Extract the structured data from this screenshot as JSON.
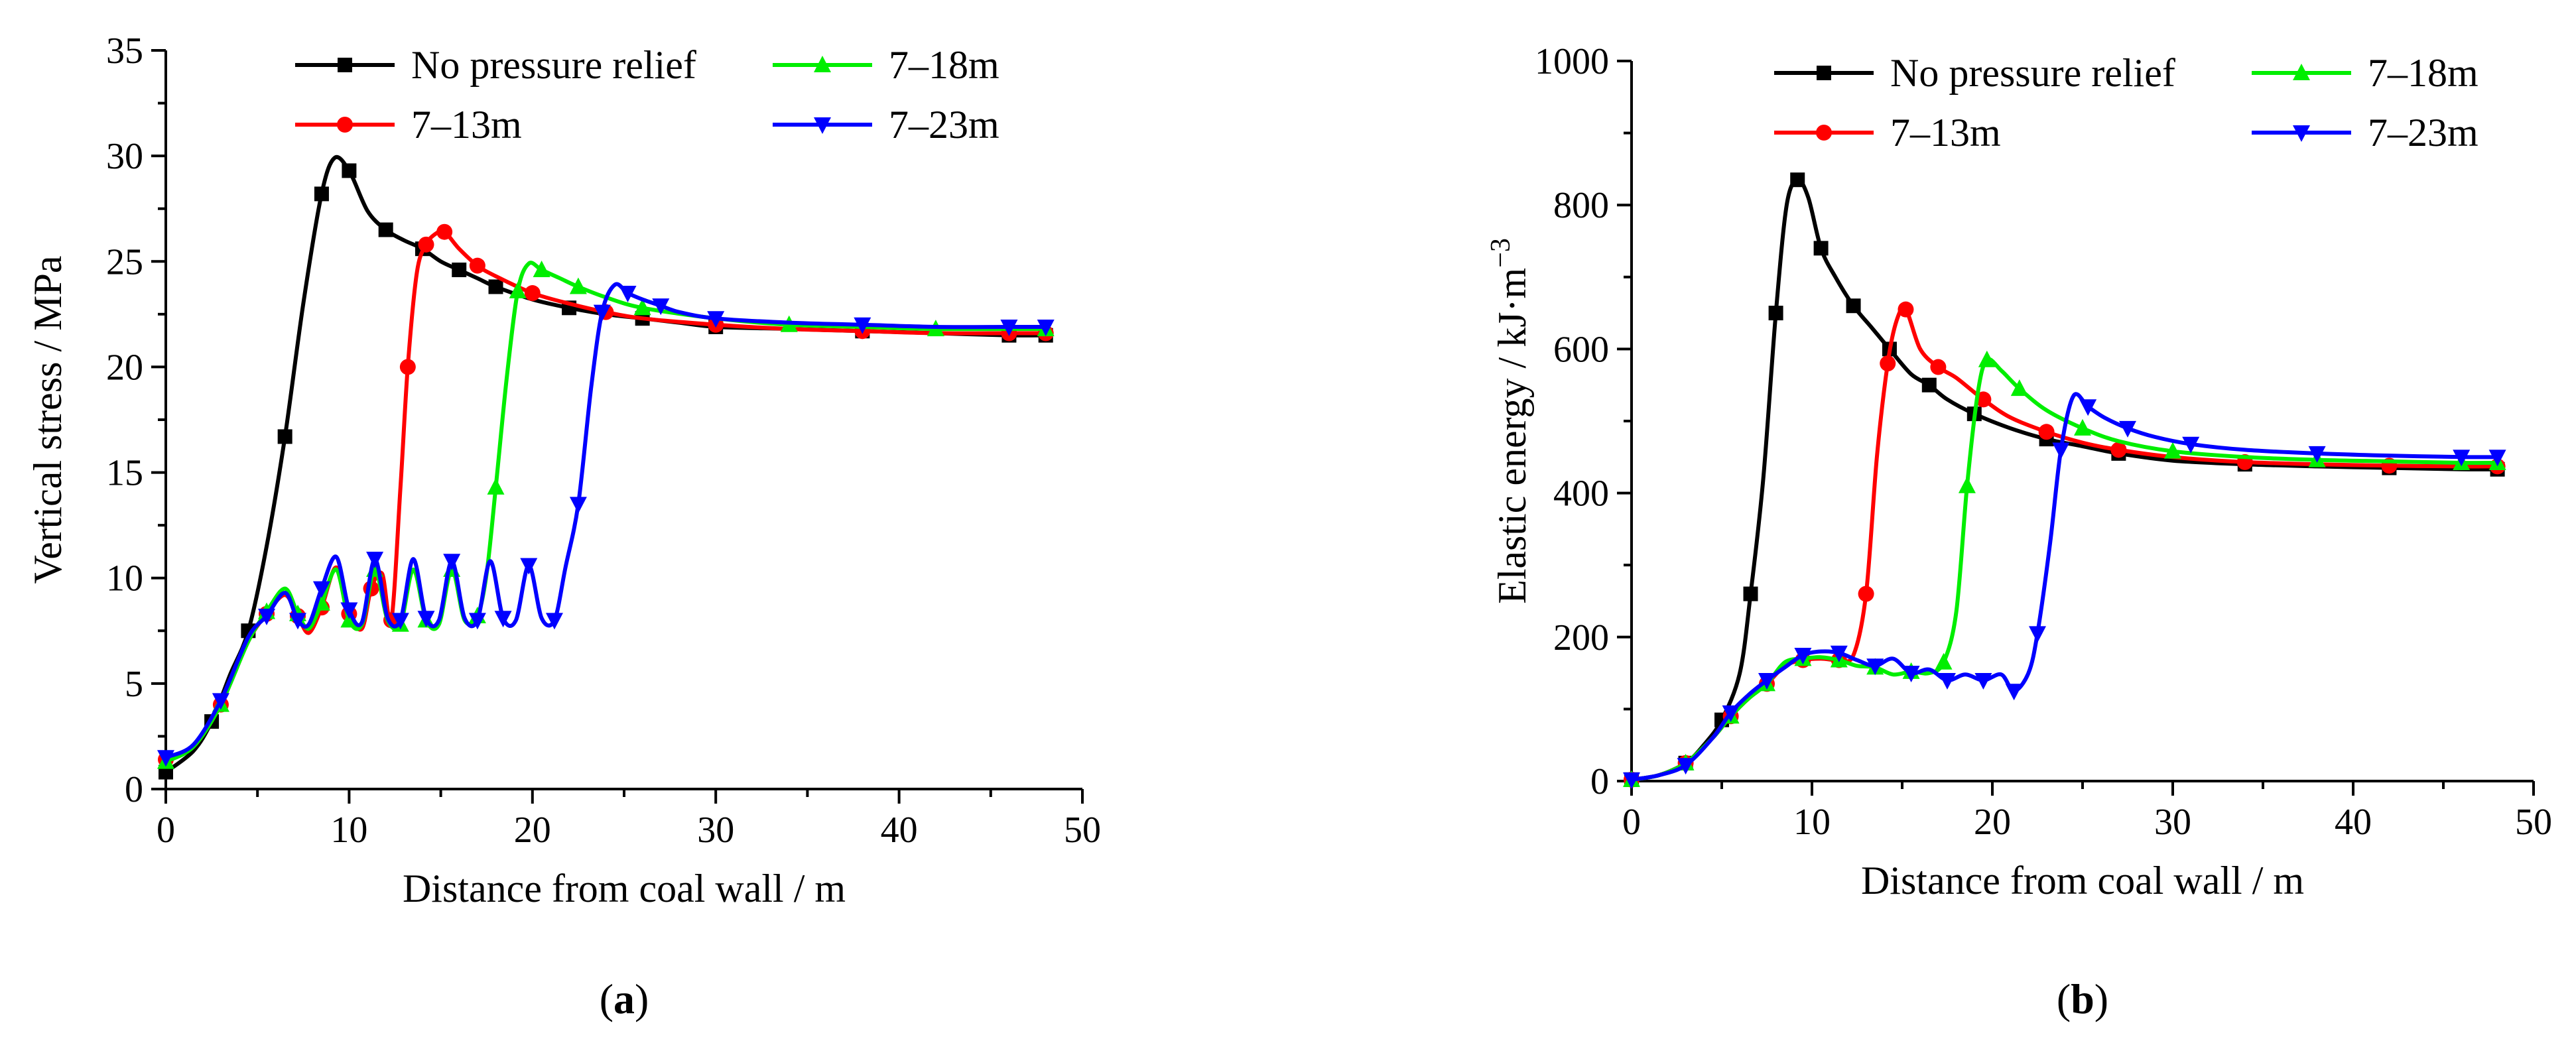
{
  "figure": {
    "series_colors": {
      "No pressure relief": "#000000",
      "7–13m": "#ff0000",
      "7–18m": "#00ee00",
      "7–23m": "#0000ff"
    }
  },
  "chart_data": [
    {
      "id": "a",
      "panel_label": "a",
      "type": "line",
      "title": "",
      "xlabel": "Distance from coal wall / m",
      "ylabel": "Vertical stress / MPa",
      "ylabel_sup": "",
      "xlim": [
        0,
        50
      ],
      "ylim": [
        0,
        35
      ],
      "xticks": [
        0,
        10,
        20,
        30,
        40,
        50
      ],
      "yticks": [
        0,
        5,
        10,
        15,
        20,
        25,
        30,
        35
      ],
      "legend": [
        "No pressure relief",
        "7–18m",
        "7–13m",
        "7–23m"
      ],
      "series": [
        {
          "name": "No pressure relief",
          "color": "#000000",
          "marker": "square",
          "x": [
            0,
            1.5,
            2.5,
            3.5,
            4.5,
            5.5,
            6.5,
            7.5,
            8.5,
            9.2,
            10,
            11,
            12,
            13,
            14,
            15,
            16,
            17,
            18,
            20,
            22,
            24,
            26,
            28,
            30,
            34,
            38,
            42,
            46,
            48
          ],
          "y": [
            0.8,
            1.8,
            3.2,
            5.4,
            7.5,
            11.5,
            16.7,
            23.0,
            28.2,
            29.9,
            29.3,
            27.4,
            26.5,
            26.0,
            25.6,
            25.0,
            24.6,
            24.2,
            23.8,
            23.2,
            22.8,
            22.5,
            22.3,
            22.1,
            21.9,
            21.8,
            21.7,
            21.6,
            21.5,
            21.5
          ]
        },
        {
          "name": "7–13m",
          "color": "#ff0000",
          "marker": "circle",
          "x": [
            0,
            1.5,
            3,
            4.5,
            5.5,
            6.5,
            7.2,
            7.8,
            8.5,
            9.3,
            10,
            10.7,
            11.2,
            11.8,
            12.3,
            12.8,
            13.2,
            13.7,
            14.2,
            14.7,
            15.2,
            16,
            17,
            18,
            20,
            22,
            24,
            26,
            30,
            34,
            38,
            42,
            46,
            48
          ],
          "y": [
            1.4,
            2.0,
            4.0,
            7.0,
            8.3,
            9.2,
            8.2,
            7.4,
            8.6,
            10.5,
            8.3,
            7.6,
            9.5,
            10.2,
            8.0,
            14.3,
            20.0,
            24.5,
            25.8,
            26.3,
            26.4,
            25.6,
            24.8,
            24.3,
            23.5,
            23.0,
            22.6,
            22.3,
            22.0,
            21.8,
            21.7,
            21.6,
            21.6,
            21.6
          ]
        },
        {
          "name": "7–18m",
          "color": "#00ee00",
          "marker": "triangle-up",
          "x": [
            0,
            1.5,
            3,
            4.5,
            5.5,
            6.5,
            7.2,
            7.8,
            8.5,
            9.3,
            10,
            10.7,
            11.4,
            12.1,
            12.8,
            13.5,
            14.2,
            14.9,
            15.6,
            16.3,
            17,
            17.5,
            18,
            18.6,
            19.2,
            19.8,
            20.5,
            21.5,
            22.5,
            24,
            26,
            30,
            34,
            38,
            42,
            46,
            48
          ],
          "y": [
            1.3,
            2.0,
            4.0,
            7.0,
            8.4,
            9.5,
            8.3,
            7.6,
            8.8,
            10.4,
            8.0,
            7.8,
            10.4,
            8.0,
            7.8,
            10.4,
            8.0,
            7.8,
            10.4,
            8.0,
            8.2,
            10.2,
            14.3,
            19.5,
            23.6,
            24.9,
            24.6,
            24.2,
            23.8,
            23.3,
            22.8,
            22.3,
            22.0,
            21.9,
            21.8,
            21.8,
            21.8
          ]
        },
        {
          "name": "7–23m",
          "color": "#0000ff",
          "marker": "triangle-down",
          "x": [
            0,
            1.5,
            3,
            4.5,
            5.5,
            6.5,
            7.2,
            7.8,
            8.5,
            9.3,
            10,
            10.7,
            11.4,
            12.1,
            12.8,
            13.5,
            14.2,
            14.9,
            15.6,
            16.3,
            17,
            17.7,
            18.4,
            19.1,
            19.8,
            20.5,
            21.2,
            21.8,
            22.5,
            23.2,
            23.8,
            24.5,
            25.2,
            26,
            27,
            28,
            30,
            34,
            38,
            42,
            46,
            48
          ],
          "y": [
            1.5,
            2.1,
            4.2,
            7.2,
            8.2,
            9.3,
            8.0,
            7.8,
            9.5,
            11.0,
            8.5,
            7.9,
            10.9,
            8.1,
            8.0,
            10.9,
            8.1,
            8.0,
            10.8,
            8.1,
            8.0,
            10.8,
            8.1,
            8.0,
            10.6,
            8.1,
            8.0,
            10.5,
            13.5,
            19.0,
            22.6,
            23.9,
            23.5,
            23.2,
            22.9,
            22.6,
            22.3,
            22.1,
            22.0,
            21.9,
            21.9,
            21.9
          ]
        }
      ]
    },
    {
      "id": "b",
      "panel_label": "b",
      "type": "line",
      "title": "",
      "xlabel": "Distance from coal wall / m",
      "ylabel": "Elastic energy / kJ·m",
      "ylabel_sup": "−3",
      "xlim": [
        0,
        50
      ],
      "ylim": [
        0,
        1000
      ],
      "xticks": [
        0,
        10,
        20,
        30,
        40,
        50
      ],
      "yticks": [
        0,
        200,
        400,
        600,
        800,
        1000
      ],
      "legend": [
        "No pressure relief",
        "7–18m",
        "7–13m",
        "7–23m"
      ],
      "series": [
        {
          "name": "No pressure relief",
          "color": "#000000",
          "marker": "square",
          "x": [
            0,
            1.5,
            3,
            4,
            5,
            6,
            6.6,
            7.3,
            8,
            8.6,
            9.2,
            9.8,
            10.5,
            11.3,
            12.3,
            13.3,
            14.3,
            15.5,
            16.5,
            17.5,
            19,
            21,
            23,
            25,
            27,
            30,
            34,
            38,
            42,
            46,
            48
          ],
          "y": [
            2,
            8,
            25,
            50,
            85,
            150,
            260,
            420,
            650,
            800,
            835,
            810,
            740,
            700,
            660,
            630,
            600,
            565,
            550,
            530,
            510,
            490,
            475,
            465,
            455,
            445,
            440,
            437,
            435,
            433,
            433
          ]
        },
        {
          "name": "7–13m",
          "color": "#ff0000",
          "marker": "circle",
          "x": [
            0,
            1.5,
            3,
            4.5,
            5.5,
            6.5,
            7.5,
            8.5,
            9.5,
            10.5,
            11.5,
            12.3,
            13,
            13.6,
            14.2,
            14.7,
            15.2,
            16,
            17,
            18,
            19.5,
            21,
            23,
            25,
            27,
            30,
            34,
            38,
            42,
            46,
            48
          ],
          "y": [
            2,
            8,
            25,
            60,
            90,
            115,
            135,
            160,
            168,
            170,
            168,
            175,
            260,
            450,
            580,
            640,
            655,
            600,
            575,
            560,
            530,
            505,
            485,
            470,
            460,
            450,
            443,
            440,
            438,
            437,
            437
          ]
        },
        {
          "name": "7–18m",
          "color": "#00ee00",
          "marker": "triangle-up",
          "x": [
            0,
            1.5,
            3,
            4.5,
            5.5,
            6.5,
            7.5,
            8.5,
            9.5,
            10.5,
            11.5,
            12.5,
            13.5,
            14.5,
            15.5,
            16.5,
            17.3,
            18,
            18.6,
            19.2,
            19.7,
            20.5,
            21.5,
            23,
            25,
            27,
            30,
            34,
            38,
            42,
            46,
            48
          ],
          "y": [
            2,
            8,
            25,
            60,
            90,
            115,
            135,
            165,
            170,
            172,
            168,
            160,
            158,
            148,
            152,
            150,
            165,
            235,
            410,
            540,
            585,
            570,
            545,
            515,
            490,
            472,
            458,
            450,
            446,
            444,
            442,
            442
          ]
        },
        {
          "name": "7–23m",
          "color": "#0000ff",
          "marker": "triangle-down",
          "x": [
            0,
            1.5,
            3,
            4.5,
            5.5,
            6.5,
            7.5,
            8.5,
            9.5,
            10.5,
            11.5,
            12.5,
            13.5,
            14.5,
            15.5,
            16.5,
            17.5,
            18.5,
            19.5,
            20.5,
            21.2,
            22,
            22.5,
            23.2,
            23.8,
            24.5,
            25.3,
            26.2,
            27.5,
            29,
            31,
            34,
            38,
            42,
            46,
            48
          ],
          "y": [
            2,
            8,
            22,
            60,
            95,
            120,
            140,
            158,
            175,
            180,
            178,
            168,
            160,
            170,
            150,
            155,
            140,
            148,
            140,
            148,
            125,
            150,
            205,
            330,
            460,
            535,
            520,
            505,
            490,
            478,
            468,
            460,
            455,
            452,
            450,
            450
          ]
        }
      ]
    }
  ]
}
